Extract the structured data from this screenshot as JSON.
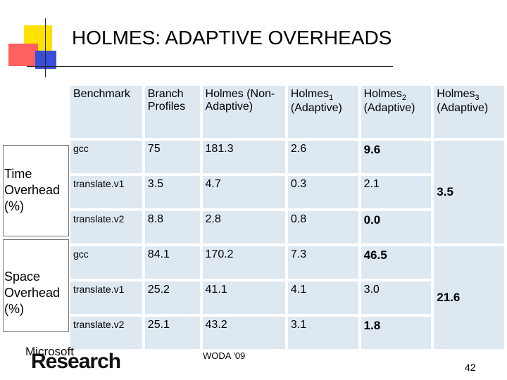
{
  "title": "HOLMES: ADAPTIVE OVERHEADS",
  "header": {
    "benchmark": "Benchmark",
    "branch": "Branch Profiles",
    "holmes": "Holmes (Non-Adaptive)",
    "h1": "Holmes",
    "h1_sub": "1",
    "h1_suffix": "(Adaptive)",
    "h2": "Holmes",
    "h2_sub": "2",
    "h2_suffix": "(Adaptive)",
    "h3": "Holmes",
    "h3_sub": "3",
    "h3_suffix": "(Adaptive)"
  },
  "time_label": "Time Overhead (%)",
  "space_label": "Space Overhead (%)",
  "time_rows": [
    {
      "bench": "gcc",
      "branch": "75",
      "holmes": "181.3",
      "h1": "2.6",
      "h2": "9.6"
    },
    {
      "bench": "translate.v1",
      "branch": "3.5",
      "holmes": "4.7",
      "h1": "0.3",
      "h2": "2.1"
    },
    {
      "bench": "translate.v2",
      "branch": "8.8",
      "holmes": "2.8",
      "h1": "0.8",
      "h2": "0.0"
    }
  ],
  "time_h3": "3.5",
  "space_rows": [
    {
      "bench": "gcc",
      "branch": "84.1",
      "holmes": "170.2",
      "h1": "7.3",
      "h2": "46.5"
    },
    {
      "bench": "translate.v1",
      "branch": "25.2",
      "holmes": "41.1",
      "h1": "4.1",
      "h2": "3.0"
    },
    {
      "bench": "translate.v2",
      "branch": "25.1",
      "holmes": "43.2",
      "h1": "3.1",
      "h2": "1.8"
    }
  ],
  "space_h3": "21.6",
  "logo": {
    "small": "Microsoft",
    "big": "Research"
  },
  "footer": "WODA '09",
  "page_number": "42",
  "colors": {
    "cell_bg": "#dde8f1",
    "accent_yellow": "#ffe100",
    "accent_red": "#ff6060",
    "accent_blue": "#3a4fd9"
  }
}
